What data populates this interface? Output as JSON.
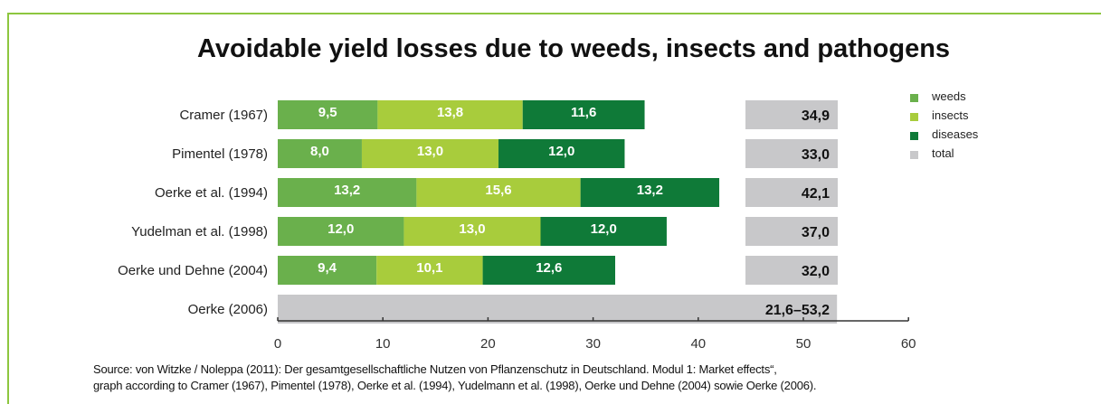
{
  "chart_data": {
    "type": "bar",
    "orientation": "horizontal",
    "stacked": true,
    "title": "Avoidable yield losses due to weeds, insects and pathogens",
    "categories": [
      "Cramer (1967)",
      "Pimentel (1978)",
      "Oerke et al. (1994)",
      "Yudelman et al. (1998)",
      "Oerke und Dehne (2004)",
      "Oerke (2006)"
    ],
    "series": [
      {
        "name": "weeds",
        "color": "#6ab04c",
        "values": [
          9.5,
          8.0,
          13.2,
          12.0,
          9.4,
          null
        ],
        "labels": [
          "9,5",
          "8,0",
          "13,2",
          "12,0",
          "9,4",
          ""
        ]
      },
      {
        "name": "insects",
        "color": "#a8cc3c",
        "values": [
          13.8,
          13.0,
          15.6,
          13.0,
          10.1,
          null
        ],
        "labels": [
          "13,8",
          "13,0",
          "15,6",
          "13,0",
          "10,1",
          ""
        ]
      },
      {
        "name": "diseases",
        "color": "#0f7a38",
        "values": [
          11.6,
          12.0,
          13.2,
          12.0,
          12.6,
          null
        ],
        "labels": [
          "11,6",
          "12,0",
          "13,2",
          "12,0",
          "12,6",
          ""
        ]
      }
    ],
    "totals": {
      "name": "total",
      "color": "#c8c8ca",
      "values": [
        34.9,
        33.0,
        42.1,
        37.0,
        32.0,
        null
      ],
      "labels": [
        "34,9",
        "33,0",
        "42,1",
        "37,0",
        "32,0",
        "21,6–53,2"
      ],
      "range_last": [
        21.6,
        53.2
      ]
    },
    "xlim": [
      0,
      60
    ],
    "xticks": [
      0,
      10,
      20,
      30,
      40,
      50,
      60
    ],
    "grid": false,
    "legend_position": "top-right"
  },
  "source": {
    "line1": "Source: von Witzke / Noleppa (2011): Der gesamtgesellschaftliche Nutzen von Pflanzenschutz in Deutschland. Modul 1: Market effects“,",
    "line2": "graph according to Cramer (1967), Pimentel (1978), Oerke et al. (1994), Yudelmann et al. (1998), Oerke und Dehne (2004) sowie Oerke (2006)."
  }
}
